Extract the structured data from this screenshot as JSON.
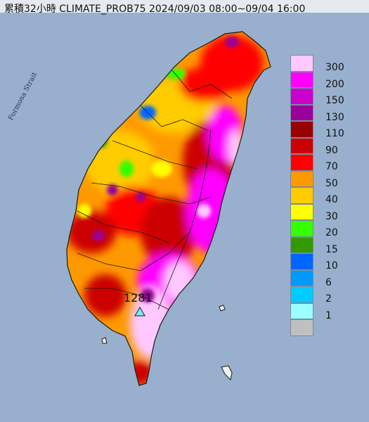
{
  "title": "累積32小時 CLIMATE_PROB75 2024/09/03 08:00~09/04 16:00",
  "strait_label": "Formosa Strait",
  "peak": {
    "value": "1281",
    "marker_icon": "triangle-station-icon"
  },
  "legend": [
    {
      "label": "300",
      "color": "#ffc8ff"
    },
    {
      "label": "200",
      "color": "#ff00ff"
    },
    {
      "label": "150",
      "color": "#cc00cc"
    },
    {
      "label": "130",
      "color": "#990099"
    },
    {
      "label": "110",
      "color": "#990000"
    },
    {
      "label": "90",
      "color": "#cc0000"
    },
    {
      "label": "70",
      "color": "#ff0000"
    },
    {
      "label": "50",
      "color": "#ff9900"
    },
    {
      "label": "40",
      "color": "#ffcc00"
    },
    {
      "label": "30",
      "color": "#ffff00"
    },
    {
      "label": "20",
      "color": "#33ff00"
    },
    {
      "label": "15",
      "color": "#339900"
    },
    {
      "label": "10",
      "color": "#0066ff"
    },
    {
      "label": "6",
      "color": "#0099ff"
    },
    {
      "label": "2",
      "color": "#00ccff"
    },
    {
      "label": "1",
      "color": "#99ffff"
    },
    {
      "label": "",
      "color": "#c0c0c0"
    }
  ]
}
